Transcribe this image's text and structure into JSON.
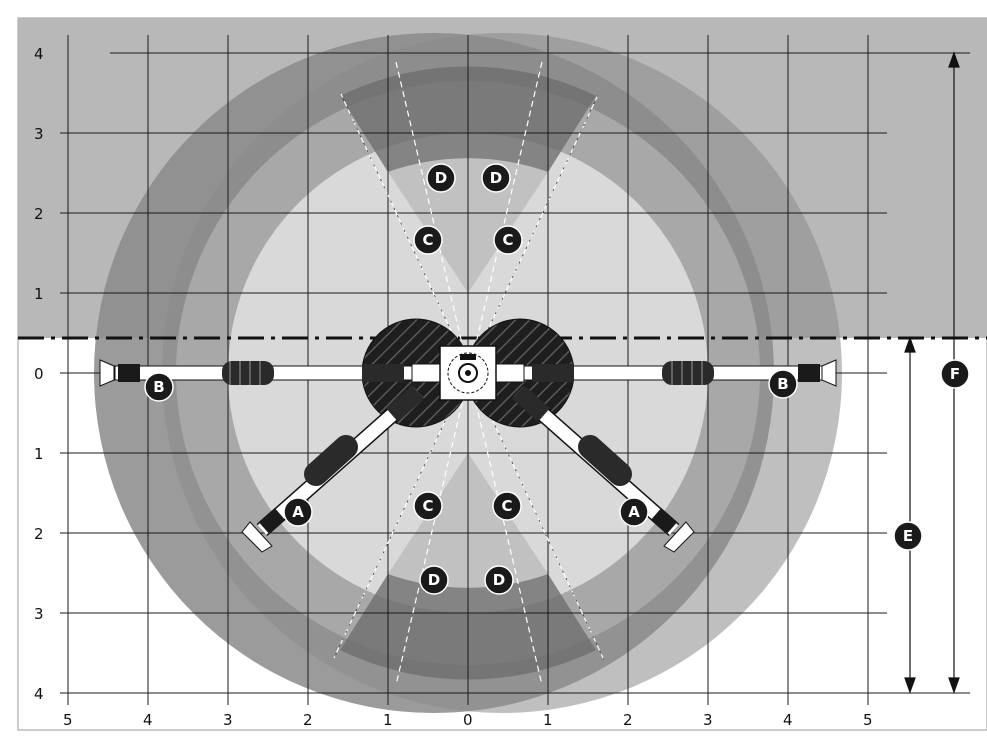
{
  "axes": {
    "y_labels": [
      "4",
      "3",
      "2",
      "1",
      "0",
      "1",
      "2",
      "3",
      "4"
    ],
    "x_labels": [
      "5",
      "4",
      "3",
      "2",
      "1",
      "0",
      "1",
      "2",
      "3",
      "4",
      "5"
    ]
  },
  "markers": {
    "A": "A",
    "B": "B",
    "C": "C",
    "D": "D",
    "E": "E",
    "F": "F"
  },
  "colors": {
    "background_band": "#b8b8b8",
    "outer_ring": "#7d7d7d",
    "middle_ring": "#9e9e9e",
    "inner_disc": "#d9d9d9",
    "dark_sector": "#6e6e6e",
    "rotor": "#1c1c1c",
    "marker": "#1a1a1a",
    "grid": "#1a1a1a"
  }
}
